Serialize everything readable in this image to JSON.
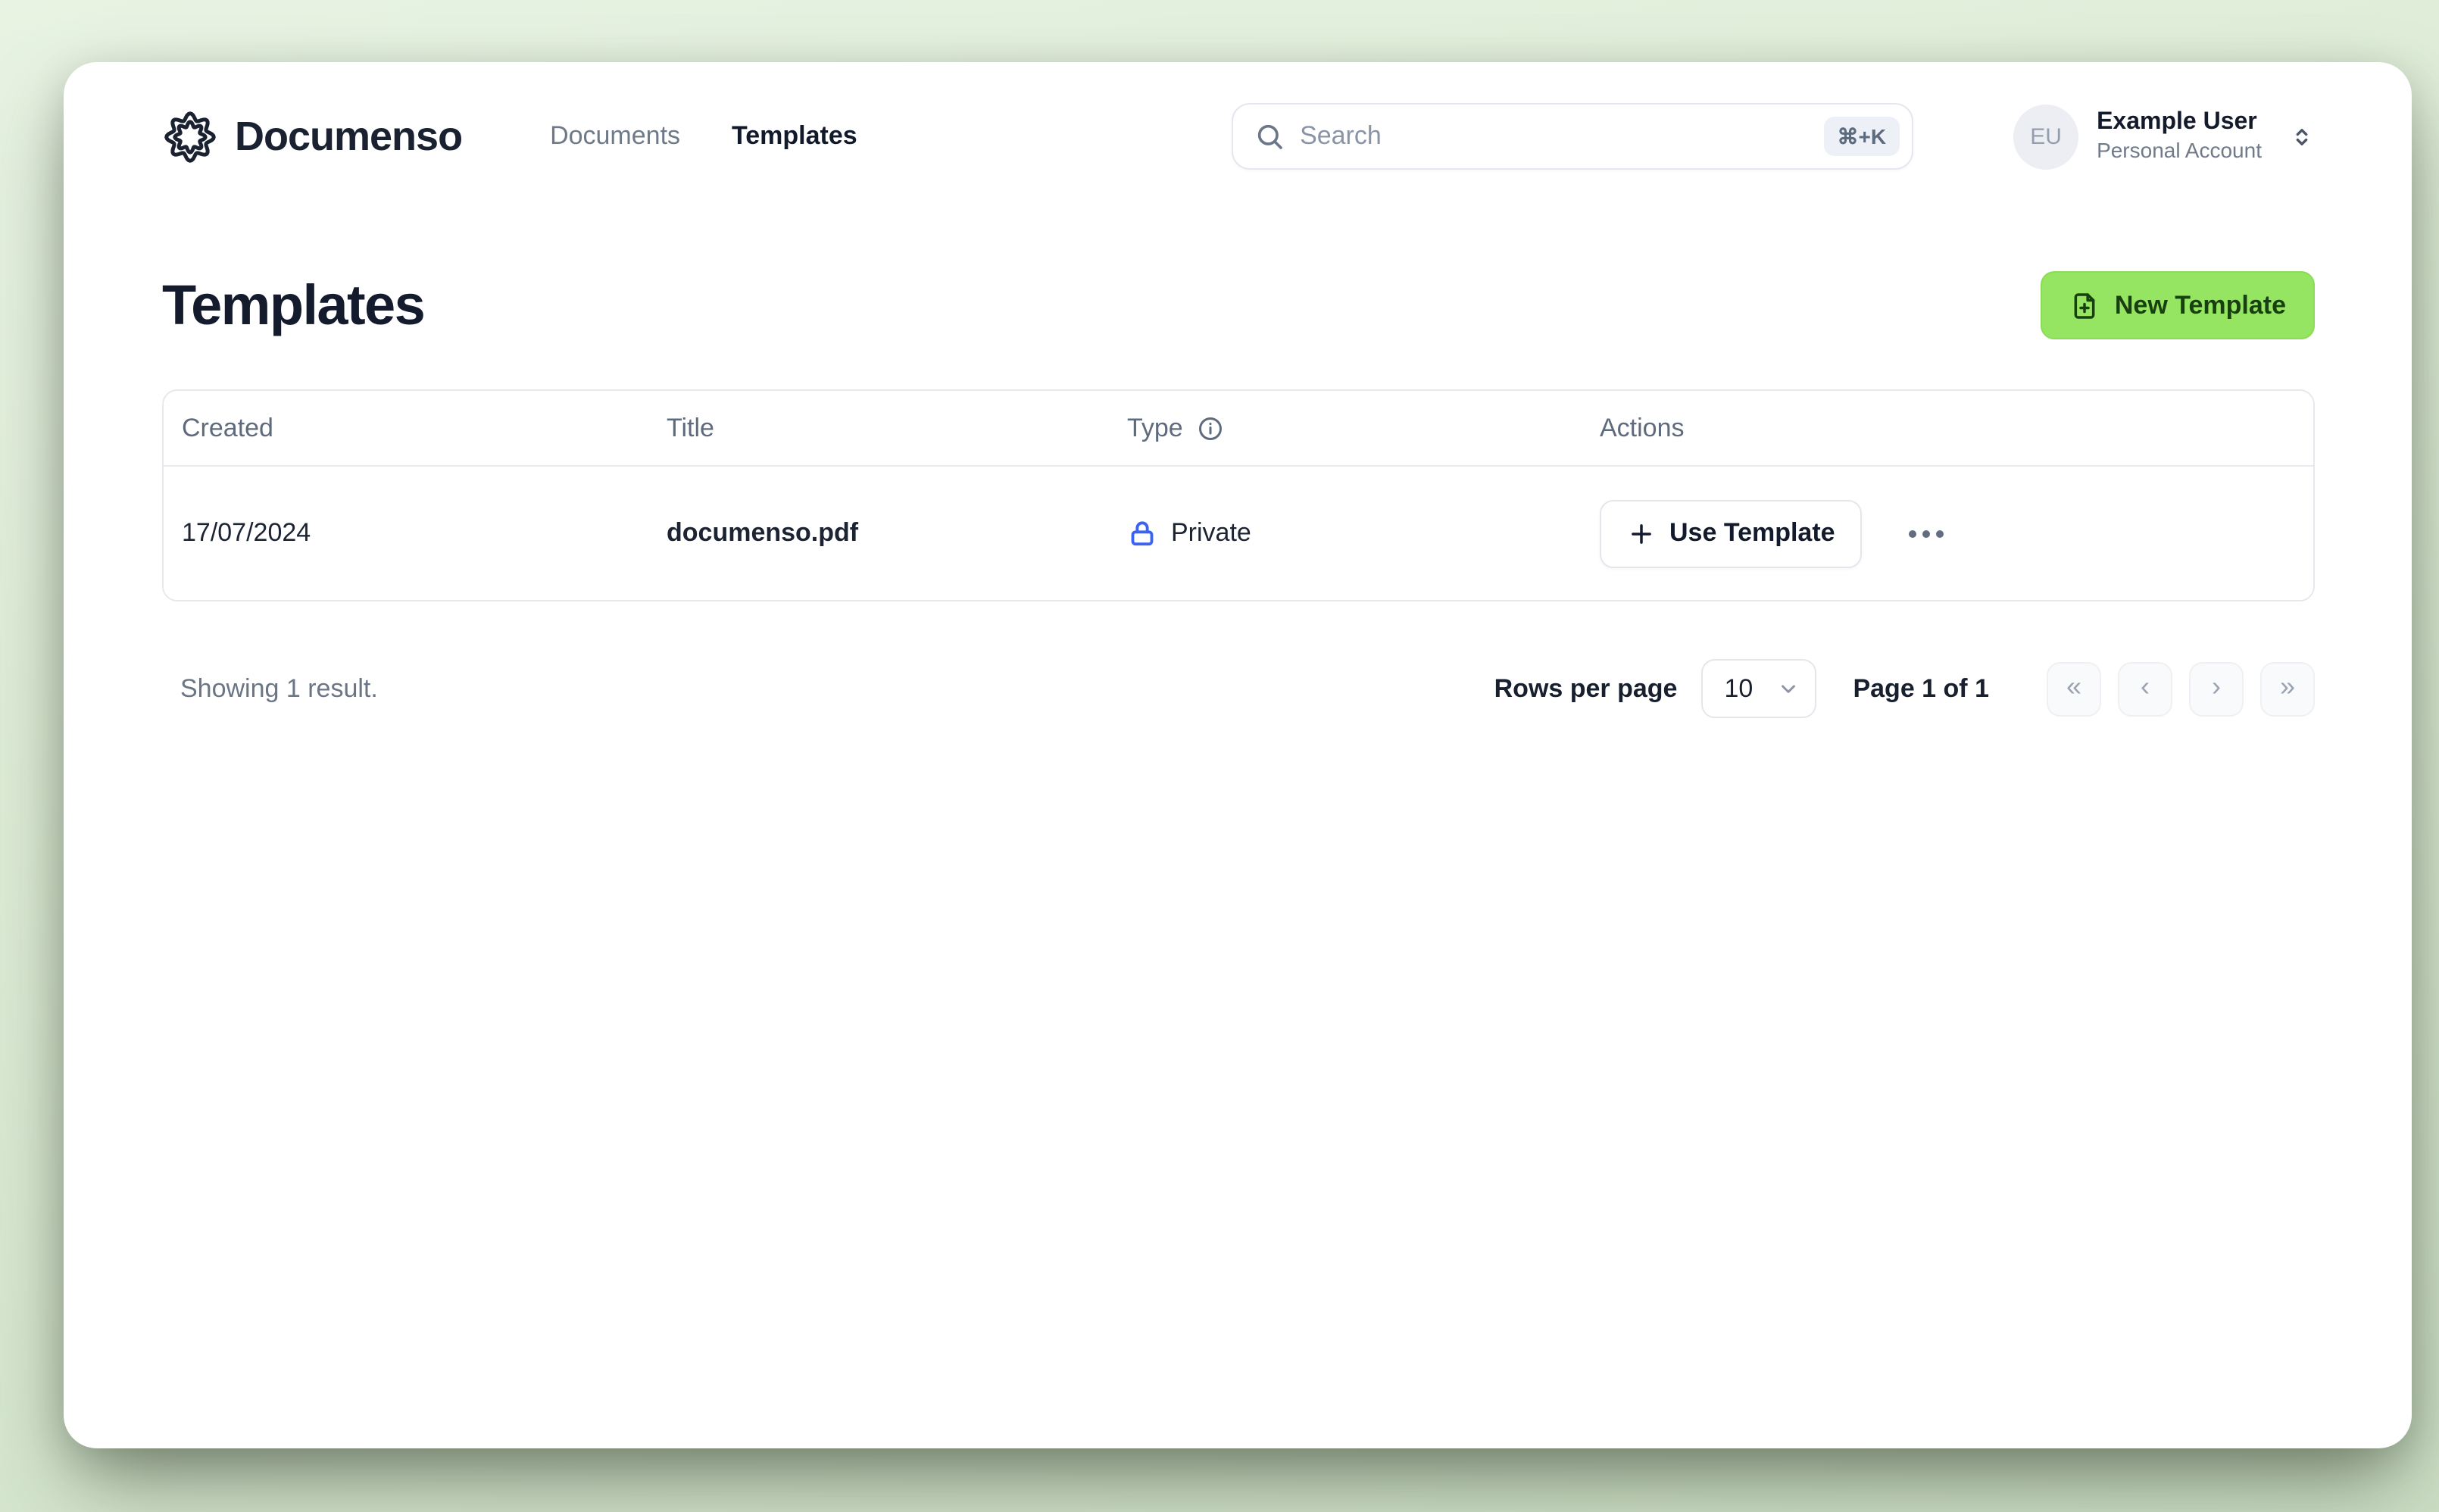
{
  "header": {
    "brand": "Documenso",
    "nav": [
      {
        "label": "Documents",
        "active": false
      },
      {
        "label": "Templates",
        "active": true
      }
    ],
    "search": {
      "placeholder": "Search",
      "shortcut": "⌘+K"
    },
    "user": {
      "initials": "EU",
      "name": "Example User",
      "account_type": "Personal Account"
    }
  },
  "page": {
    "title": "Templates",
    "new_template_label": "New Template"
  },
  "table": {
    "columns": [
      "Created",
      "Title",
      "Type",
      "Actions"
    ],
    "rows": [
      {
        "created": "17/07/2024",
        "title": "documenso.pdf",
        "type": "Private",
        "use_template_label": "Use Template"
      }
    ]
  },
  "footer": {
    "results_text": "Showing 1 result.",
    "rows_per_page_label": "Rows per page",
    "rows_per_page_value": "10",
    "page_status": "Page 1 of 1",
    "pagination": {
      "first": "«",
      "prev": "‹",
      "next": "›",
      "last": "»"
    }
  },
  "colors": {
    "accent_green": "#95e462",
    "lock_blue": "#3b63f3",
    "background_green": "#ddecd6",
    "dark_text": "#141b2d",
    "muted_text": "#5f6b7c"
  }
}
